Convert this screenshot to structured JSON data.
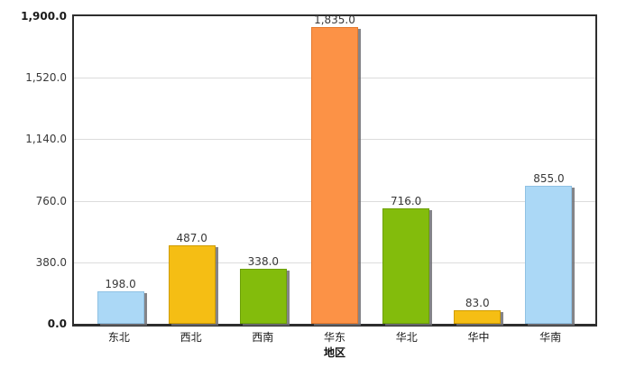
{
  "chart_data": {
    "type": "bar",
    "title": "",
    "xlabel": "地区",
    "ylabel": "",
    "categories": [
      "东北",
      "西北",
      "西南",
      "华东",
      "华北",
      "华中",
      "华南"
    ],
    "values": [
      198,
      487,
      338,
      1835,
      716,
      83,
      855
    ],
    "value_labels": [
      "198.0",
      "487.0",
      "338.0",
      "1,835.0",
      "716.0",
      "83.0",
      "855.0"
    ],
    "bar_fill_colors": [
      "#abd8f6",
      "#f5be14",
      "#83bc0c",
      "#fc9246",
      "#83bc0c",
      "#f5be14",
      "#abd8f6"
    ],
    "bar_border_colors": [
      "#8fc1e3",
      "#cf9c00",
      "#6da00a",
      "#e57a2e",
      "#6da00a",
      "#cf9c00",
      "#8fc1e3"
    ],
    "ylim": [
      0,
      1900
    ],
    "yticks": [
      1900,
      1520,
      1140,
      760,
      380,
      0
    ],
    "ytick_labels": [
      "1,900.0",
      "1,520.0",
      "1,140.0",
      "760.0",
      "380.0",
      "0.0"
    ],
    "grid": true,
    "legend_position": "none"
  },
  "style_colors": {
    "axis": "#2e2e2e",
    "gridline": "#dcdcdc",
    "background": "#ffffff",
    "bar_shadow": "#6e6e73"
  }
}
